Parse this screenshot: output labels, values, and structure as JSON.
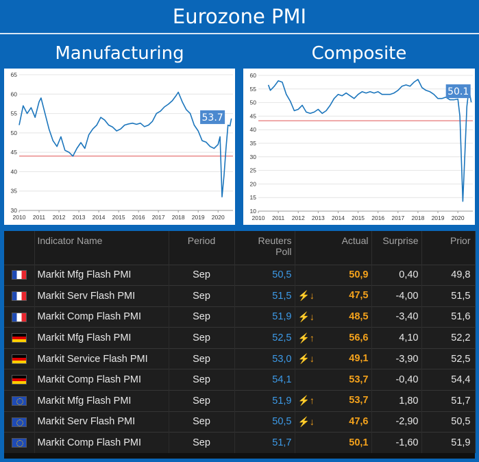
{
  "title": "Eurozone PMI",
  "subtitles": {
    "left": "Manufacturing",
    "right": "Composite"
  },
  "colors": {
    "line": "#1b75bc",
    "threshold": "#e05050",
    "callout": "#4b89cf",
    "background": "#0a66b8"
  },
  "chart_data": [
    {
      "type": "line",
      "title": "",
      "callout_label": "53.7",
      "x_ticks": [
        "2010",
        "2011",
        "2012",
        "2013",
        "2014",
        "2015",
        "2016",
        "2017",
        "2018",
        "2019",
        "2020"
      ],
      "y_ticks": [
        "30",
        "35",
        "40",
        "45",
        "50",
        "55",
        "60",
        "65"
      ],
      "xlim": [
        2010.0,
        2020.75
      ],
      "ylim": [
        30,
        65
      ],
      "threshold": 44,
      "grid": "horizontal",
      "series": [
        {
          "x": [
            2010.0,
            2010.2,
            2010.4,
            2010.6,
            2010.8,
            2011.0,
            2011.1,
            2011.3,
            2011.5,
            2011.7,
            2011.9,
            2012.1,
            2012.3,
            2012.5,
            2012.7,
            2012.9,
            2013.1,
            2013.3,
            2013.5,
            2013.7,
            2013.9,
            2014.1,
            2014.3,
            2014.5,
            2014.7,
            2014.9,
            2015.1,
            2015.3,
            2015.5,
            2015.7,
            2015.9,
            2016.1,
            2016.3,
            2016.5,
            2016.7,
            2016.9,
            2017.1,
            2017.3,
            2017.5,
            2017.7,
            2017.9,
            2018.0,
            2018.2,
            2018.4,
            2018.6,
            2018.8,
            2019.0,
            2019.2,
            2019.4,
            2019.6,
            2019.8,
            2020.0,
            2020.1,
            2020.2,
            2020.3,
            2020.4,
            2020.5,
            2020.6,
            2020.67
          ],
          "values": [
            52,
            57,
            55,
            56.5,
            54,
            58,
            59,
            55,
            51,
            48,
            46.5,
            49,
            45.5,
            45,
            44,
            46,
            47.5,
            46,
            49.5,
            51,
            52,
            54,
            53.3,
            52,
            51.5,
            50.5,
            51,
            52,
            52.3,
            52.5,
            52.2,
            52.5,
            51.6,
            52,
            53,
            55,
            55.6,
            56.7,
            57.4,
            58.3,
            59.7,
            60.5,
            58,
            56,
            55,
            52,
            50.5,
            48,
            47.6,
            46.5,
            46,
            47,
            49,
            33.5,
            39,
            46,
            52,
            51.8,
            53.7
          ]
        }
      ]
    },
    {
      "type": "line",
      "title": "",
      "callout_label": "50.1",
      "x_ticks": [
        "2010",
        "2011",
        "2012",
        "2013",
        "2014",
        "2015",
        "2016",
        "2017",
        "2018",
        "2019",
        "2020"
      ],
      "y_ticks": [
        "10",
        "15",
        "20",
        "25",
        "30",
        "35",
        "40",
        "45",
        "50",
        "55",
        "60"
      ],
      "xlim": [
        2010.0,
        2020.75
      ],
      "ylim": [
        10,
        60
      ],
      "threshold": 43.3,
      "grid": "horizontal",
      "series": [
        {
          "x": [
            2010.5,
            2010.6,
            2010.8,
            2011.0,
            2011.2,
            2011.4,
            2011.6,
            2011.8,
            2012.0,
            2012.2,
            2012.4,
            2012.6,
            2012.8,
            2013.0,
            2013.2,
            2013.4,
            2013.6,
            2013.8,
            2014.0,
            2014.2,
            2014.4,
            2014.6,
            2014.8,
            2015.0,
            2015.2,
            2015.4,
            2015.6,
            2015.8,
            2016.0,
            2016.2,
            2016.4,
            2016.6,
            2016.8,
            2017.0,
            2017.2,
            2017.4,
            2017.6,
            2017.8,
            2018.0,
            2018.2,
            2018.4,
            2018.6,
            2018.8,
            2019.0,
            2019.2,
            2019.4,
            2019.6,
            2019.8,
            2020.0,
            2020.1,
            2020.25,
            2020.35,
            2020.45,
            2020.55,
            2020.67
          ],
          "values": [
            56.5,
            54.5,
            56,
            58,
            57.5,
            53,
            50.5,
            47,
            47.5,
            49,
            46.5,
            46,
            46.5,
            47.5,
            46,
            47,
            49,
            51.5,
            53,
            52.5,
            53.5,
            52.5,
            51.5,
            53,
            54,
            53.5,
            54,
            53.5,
            54,
            53,
            53,
            53,
            53.5,
            54.5,
            56,
            56.5,
            56,
            57.5,
            58.5,
            55.5,
            54.5,
            54,
            53,
            51.5,
            51.5,
            52,
            51,
            51,
            51.3,
            45,
            13.6,
            31,
            48.5,
            55,
            50.1
          ]
        }
      ]
    }
  ],
  "table": {
    "headers": {
      "name": "Indicator Name",
      "period": "Period",
      "poll_line1": "Reuters",
      "poll_line2": "Poll",
      "actual": "Actual",
      "surprise": "Surprise",
      "prior": "Prior"
    },
    "rows": [
      {
        "flag": "fr",
        "name": "Markit Mfg Flash PMI",
        "period": "Sep",
        "poll": "50,5",
        "arrow": "",
        "actual": "50,9",
        "surprise": "0,40",
        "prior": "49,8"
      },
      {
        "flag": "fr",
        "name": "Markit Serv Flash PMI",
        "period": "Sep",
        "poll": "51,5",
        "arrow": "⚡↓",
        "actual": "47,5",
        "surprise": "-4,00",
        "prior": "51,5"
      },
      {
        "flag": "fr",
        "name": "Markit Comp Flash PMI",
        "period": "Sep",
        "poll": "51,9",
        "arrow": "⚡↓",
        "actual": "48,5",
        "surprise": "-3,40",
        "prior": "51,6"
      },
      {
        "flag": "de",
        "name": "Markit Mfg Flash PMI",
        "period": "Sep",
        "poll": "52,5",
        "arrow": "⚡↑",
        "actual": "56,6",
        "surprise": "4,10",
        "prior": "52,2"
      },
      {
        "flag": "de",
        "name": "Markit Service Flash PMI",
        "period": "Sep",
        "poll": "53,0",
        "arrow": "⚡↓",
        "actual": "49,1",
        "surprise": "-3,90",
        "prior": "52,5"
      },
      {
        "flag": "de",
        "name": "Markit Comp Flash PMI",
        "period": "Sep",
        "poll": "54,1",
        "arrow": "",
        "actual": "53,7",
        "surprise": "-0,40",
        "prior": "54,4"
      },
      {
        "flag": "eu",
        "name": "Markit Mfg Flash PMI",
        "period": "Sep",
        "poll": "51,9",
        "arrow": "⚡↑",
        "actual": "53,7",
        "surprise": "1,80",
        "prior": "51,7"
      },
      {
        "flag": "eu",
        "name": "Markit Serv Flash PMI",
        "period": "Sep",
        "poll": "50,5",
        "arrow": "⚡↓",
        "actual": "47,6",
        "surprise": "-2,90",
        "prior": "50,5"
      },
      {
        "flag": "eu",
        "name": "Markit Comp Flash PMI",
        "period": "Sep",
        "poll": "51,7",
        "arrow": "",
        "actual": "50,1",
        "surprise": "-1,60",
        "prior": "51,9"
      }
    ]
  }
}
